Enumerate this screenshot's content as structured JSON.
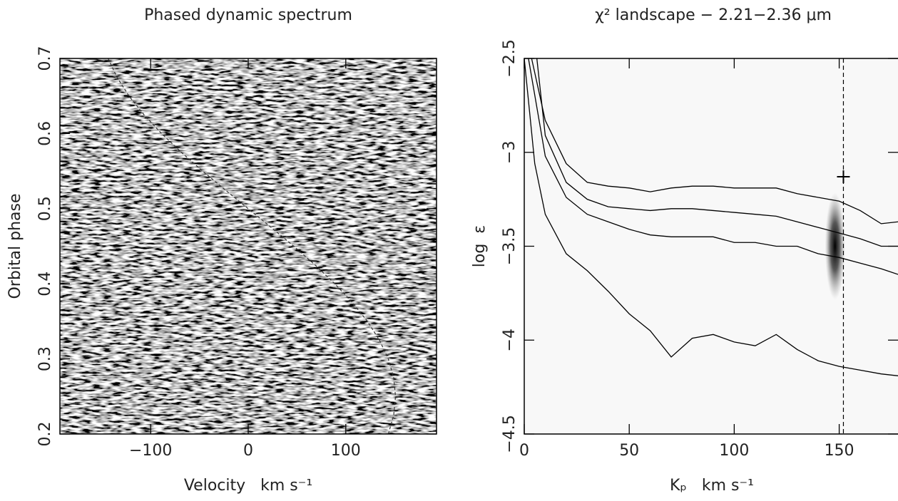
{
  "chart_data": [
    {
      "type": "image",
      "title": "Phased dynamic spectrum",
      "xlabel": "Velocity   km s⁻¹",
      "ylabel": "Orbital phase",
      "xlim": [
        -193,
        193
      ],
      "ylim": [
        0.2,
        0.7
      ],
      "xticks": [
        {
          "value": -100,
          "label": "−100"
        },
        0,
        100
      ],
      "yticks": [
        0.2,
        0.3,
        0.4,
        0.5,
        0.6,
        0.7
      ],
      "background": "#808080",
      "bands": [
        [
          0.5,
          0.581
        ],
        [
          0.417,
          0.43
        ],
        [
          0.402,
          0.407
        ],
        [
          0.38,
          0.398
        ],
        [
          0.3,
          0.372
        ]
      ],
      "line": {
        "color": "#333333",
        "x": [
          143.6,
          149.1,
          151,
          149.1,
          143.6,
          134.5,
          122.2,
          106.8,
          88.8,
          68.6,
          46.7,
          23.6,
          0,
          -23.6,
          -46.7,
          -68.6,
          -88.8,
          -106.8,
          -122.2,
          -134.5,
          -143.6
        ],
        "values": [
          0.2,
          0.225,
          0.25,
          0.275,
          0.3,
          0.325,
          0.35,
          0.375,
          0.4,
          0.425,
          0.45,
          0.475,
          0.5,
          0.525,
          0.55,
          0.575,
          0.6,
          0.625,
          0.65,
          0.675,
          0.7
        ]
      }
    },
    {
      "type": "line",
      "title": "χ² landscape − 2.21−2.36 μm",
      "xlabel": "Kₚ   km s⁻¹",
      "ylabel": "log  ε",
      "xlim": [
        0,
        178
      ],
      "ylim": [
        -4.5,
        -2.5
      ],
      "xticks": [
        0,
        50,
        100,
        150
      ],
      "yticks": [
        {
          "value": -4.5,
          "label": "−4.5"
        },
        {
          "value": -4,
          "label": "−4"
        },
        {
          "value": -3.5,
          "label": "−3.5"
        },
        {
          "value": -3,
          "label": "−3"
        },
        {
          "value": -2.5,
          "label": "−2.5"
        }
      ],
      "background": "#f8f8f8",
      "series": [
        {
          "color": "#000000",
          "x": [
            3.5,
            10,
            20,
            30,
            40,
            50,
            60,
            70,
            80,
            90,
            100,
            110,
            120,
            130,
            140,
            150,
            160,
            170,
            178
          ],
          "values": [
            -2.5,
            -2.83,
            -3.06,
            -3.16,
            -3.18,
            -3.19,
            -3.21,
            -3.19,
            -3.18,
            -3.18,
            -3.19,
            -3.19,
            -3.19,
            -3.22,
            -3.24,
            -3.26,
            -3.31,
            -3.38,
            -3.37
          ]
        },
        {
          "color": "#000000",
          "x": [
            6,
            10,
            20,
            30,
            40,
            50,
            60,
            70,
            80,
            90,
            100,
            110,
            120,
            130,
            140,
            150,
            160,
            170,
            178
          ],
          "values": [
            -2.5,
            -2.91,
            -3.16,
            -3.25,
            -3.29,
            -3.3,
            -3.31,
            -3.3,
            -3.3,
            -3.31,
            -3.32,
            -3.33,
            -3.34,
            -3.37,
            -3.4,
            -3.43,
            -3.46,
            -3.5,
            -3.5
          ]
        },
        {
          "color": "#000000",
          "x": [
            2,
            10,
            20,
            30,
            40,
            50,
            60,
            70,
            80,
            90,
            100,
            110,
            120,
            130,
            140,
            150,
            160,
            170,
            178
          ],
          "values": [
            -2.5,
            -3.02,
            -3.24,
            -3.33,
            -3.37,
            -3.41,
            -3.44,
            -3.45,
            -3.45,
            -3.45,
            -3.48,
            -3.48,
            -3.5,
            -3.5,
            -3.54,
            -3.56,
            -3.59,
            -3.62,
            -3.65
          ]
        },
        {
          "color": "#000000",
          "x": [
            0,
            5,
            10,
            20,
            30,
            40,
            50,
            60,
            70,
            80,
            90,
            100,
            110,
            120,
            130,
            140,
            150,
            160,
            170,
            178
          ],
          "values": [
            -2.5,
            -3.06,
            -3.33,
            -3.54,
            -3.63,
            -3.74,
            -3.86,
            -3.95,
            -4.09,
            -3.99,
            -3.97,
            -4.01,
            -4.03,
            -3.97,
            -4.05,
            -4.11,
            -4.14,
            -4.16,
            -4.18,
            -4.19
          ]
        }
      ],
      "peak": {
        "x": 148,
        "y": -3.5
      },
      "marker": {
        "x": 152,
        "y": -3.13
      }
    }
  ]
}
